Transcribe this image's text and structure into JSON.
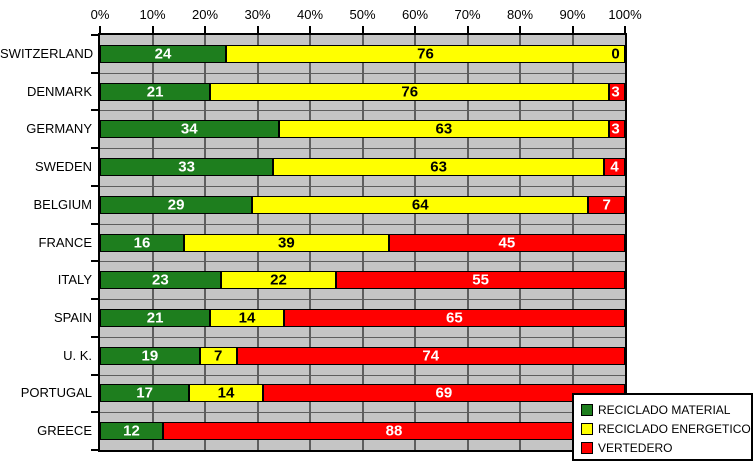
{
  "chart_data": {
    "type": "bar",
    "orientation": "horizontal",
    "stacked": true,
    "title": "",
    "xlabel": "",
    "ylabel": "",
    "x_axis": {
      "min": 0,
      "max": 100,
      "tick_labels": [
        "0%",
        "10%",
        "20%",
        "30%",
        "40%",
        "50%",
        "60%",
        "70%",
        "80%",
        "90%",
        "100%"
      ]
    },
    "categories": [
      "SWITZERLAND",
      "DENMARK",
      "GERMANY",
      "SWEDEN",
      "BELGIUM",
      "FRANCE",
      "ITALY",
      "SPAIN",
      "U. K.",
      "PORTUGAL",
      "GREECE"
    ],
    "series": [
      {
        "name": "RECICLADO MATERIAL",
        "color": "#1e7e1e",
        "label_color": "#ffffff",
        "values": [
          24,
          21,
          34,
          33,
          29,
          16,
          23,
          21,
          19,
          17,
          12
        ]
      },
      {
        "name": "RECICLADO ENERGETICO",
        "color": "#ffff00",
        "label_color": "#000000",
        "values": [
          76,
          76,
          63,
          63,
          64,
          39,
          22,
          14,
          7,
          14,
          0
        ]
      },
      {
        "name": "VERTEDERO",
        "color": "#ff0000",
        "label_color": "#ffffff",
        "values": [
          0,
          3,
          3,
          4,
          7,
          45,
          55,
          65,
          74,
          69,
          88
        ]
      }
    ],
    "data_labels": [
      [
        "24",
        "76",
        "0"
      ],
      [
        "21",
        "76",
        "3"
      ],
      [
        "34",
        "63",
        "3"
      ],
      [
        "33",
        "63",
        "4"
      ],
      [
        "29",
        "64",
        "7"
      ],
      [
        "16",
        "39",
        "45"
      ],
      [
        "23",
        "22",
        "55"
      ],
      [
        "21",
        "14",
        "65"
      ],
      [
        "19",
        "7",
        "74"
      ],
      [
        "17",
        "14",
        "69"
      ],
      [
        "12",
        "",
        "88"
      ]
    ],
    "zero_width_label_color": "#000000",
    "legend": {
      "position": "bottom-right",
      "items": [
        "RECICLADO MATERIAL",
        "RECICLADO ENERGETICO",
        "VERTEDERO"
      ]
    },
    "style": {
      "plot_bg": "#c5c5c5",
      "gridline_color": "#5e5e5e",
      "border_color": "#000000",
      "grid": "vertical-every-10pct-and-category-boundaries"
    }
  }
}
